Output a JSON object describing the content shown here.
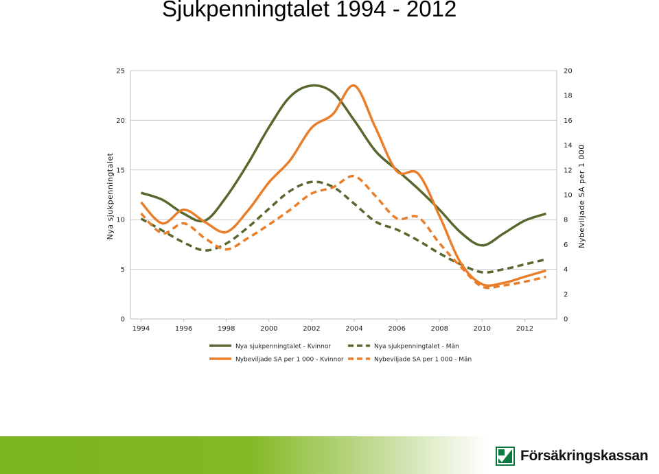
{
  "title": "Sjukpenningtalet 1994 - 2012",
  "brand": {
    "name": "Försäkringskassan",
    "logo_icon": "forsakringskassan-logo-icon",
    "band_color": "#7ab51d"
  },
  "chart_data": {
    "type": "line",
    "x_ticks": [
      "1994",
      "1996",
      "1998",
      "2000",
      "2002",
      "2004",
      "2006",
      "2008",
      "2010",
      "2012"
    ],
    "xlim": [
      1993.5,
      2013.5
    ],
    "left_axis": {
      "label": "Nya sjukpenningtalet",
      "ylim": [
        0,
        25
      ],
      "ticks": [
        "0",
        "5",
        "10",
        "15",
        "20",
        "25"
      ]
    },
    "right_axis": {
      "label": "Nybeviljade SA per 1 000",
      "ylim": [
        0,
        20
      ],
      "ticks": [
        "0",
        "2",
        "4",
        "6",
        "8",
        "10",
        "12",
        "14",
        "16",
        "18",
        "20"
      ]
    },
    "grid": true,
    "legend_position": "bottom",
    "series": [
      {
        "name": "Nya sjukpenningtalet - Kvinnor",
        "axis": "left",
        "color": "#56682e",
        "dash": "solid",
        "x": [
          1994,
          1995,
          1996,
          1997,
          1998,
          1999,
          2000,
          2001,
          2002,
          2003,
          2004,
          2005,
          2006,
          2007,
          2008,
          2009,
          2010,
          2011,
          2012,
          2013
        ],
        "y": [
          12.7,
          12.0,
          10.6,
          9.9,
          12.3,
          15.6,
          19.3,
          22.4,
          23.5,
          22.8,
          20.0,
          16.9,
          15.0,
          13.1,
          11.0,
          8.7,
          7.4,
          8.6,
          9.9,
          10.6
        ]
      },
      {
        "name": "Nya sjukpenningtalet - Män",
        "axis": "left",
        "color": "#56682e",
        "dash": "dashed",
        "x": [
          1994,
          1995,
          1996,
          1997,
          1998,
          1999,
          2000,
          2001,
          2002,
          2003,
          2004,
          2005,
          2006,
          2007,
          2008,
          2009,
          2010,
          2011,
          2012,
          2013
        ],
        "y": [
          10.1,
          8.9,
          7.7,
          6.9,
          7.6,
          9.2,
          11.1,
          12.9,
          13.8,
          13.3,
          11.6,
          9.8,
          9.0,
          7.9,
          6.6,
          5.5,
          4.7,
          5.0,
          5.5,
          6.0
        ]
      },
      {
        "name": "Nybeviljade SA per 1 000 - Kvinnor",
        "axis": "right",
        "color": "#e87d2a",
        "dash": "solid",
        "x": [
          1994,
          1995,
          1996,
          1997,
          1998,
          1999,
          2000,
          2001,
          2002,
          2003,
          2004,
          2005,
          2006,
          2007,
          2008,
          2009,
          2010,
          2011,
          2012,
          2013
        ],
        "y": [
          9.4,
          7.7,
          8.8,
          7.8,
          7.0,
          8.7,
          11.0,
          12.8,
          15.4,
          16.5,
          18.8,
          15.4,
          11.9,
          11.7,
          8.3,
          4.5,
          2.8,
          2.9,
          3.4,
          3.9
        ]
      },
      {
        "name": "Nybeviljade SA per 1 000 - Män",
        "axis": "right",
        "color": "#e87d2a",
        "dash": "dashed",
        "x": [
          1994,
          1995,
          1996,
          1997,
          1998,
          1999,
          2000,
          2001,
          2002,
          2003,
          2004,
          2005,
          2006,
          2007,
          2008,
          2009,
          2010,
          2011,
          2012,
          2013
        ],
        "y": [
          8.5,
          6.9,
          7.7,
          6.5,
          5.6,
          6.5,
          7.6,
          8.8,
          10.1,
          10.6,
          11.5,
          9.9,
          8.1,
          8.2,
          6.1,
          4.2,
          2.6,
          2.7,
          3.0,
          3.4
        ]
      }
    ]
  }
}
